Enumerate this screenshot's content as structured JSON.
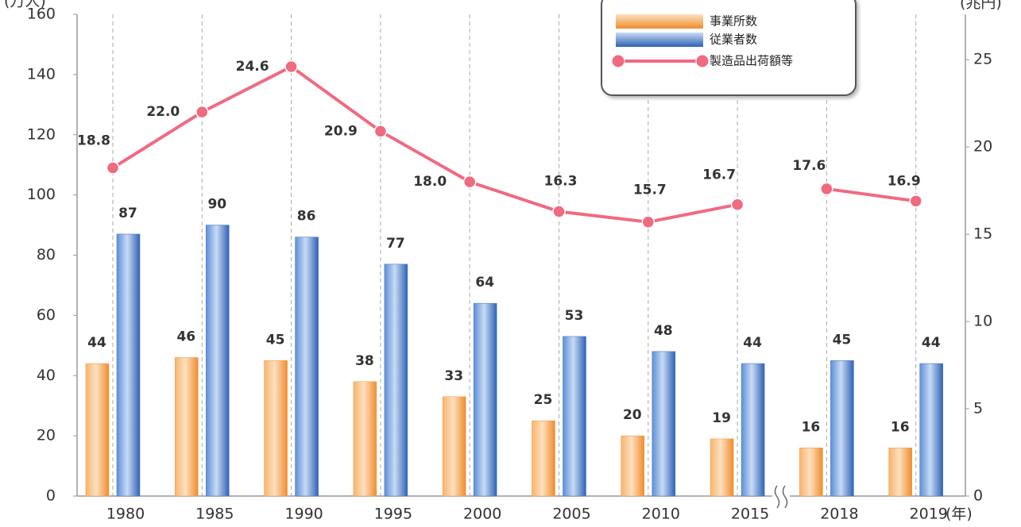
{
  "chart_data": {
    "type": "bar_line",
    "categories": [
      "1980",
      "1985",
      "1990",
      "1995",
      "2000",
      "2005",
      "2010",
      "2015",
      "2018",
      "2019"
    ],
    "x_break_index": 8,
    "y_label": "(万人)",
    "y2_label": "(兆円)",
    "x_label": "(年)",
    "series": [
      {
        "name": "事業所数",
        "type": "bar",
        "color": "#f5a04a",
        "values": [
          44,
          46,
          45,
          38,
          33,
          25,
          20,
          19,
          16,
          16
        ]
      },
      {
        "name": "従業者数",
        "type": "bar",
        "color": "#4a7cc8",
        "values": [
          87,
          90,
          86,
          77,
          64,
          53,
          48,
          44,
          45,
          44
        ]
      },
      {
        "name": "製造品出荷額等",
        "type": "line",
        "axis": "y2",
        "color": "#f06a80",
        "values": [
          18.8,
          22.0,
          24.6,
          20.9,
          18.0,
          16.3,
          15.7,
          16.7,
          17.6,
          16.9
        ],
        "value_labels": [
          "18.8",
          "22.0",
          "24.6",
          "20.9",
          "18.0",
          "16.3",
          "15.7",
          "16.7",
          "17.6",
          "16.9"
        ]
      }
    ],
    "ylim": [
      0,
      160
    ],
    "yticks": [
      0,
      20,
      40,
      60,
      80,
      100,
      120,
      140,
      160
    ],
    "y2lim": [
      0,
      27.6
    ],
    "y2ticks": [
      0,
      5,
      10,
      15,
      20,
      25
    ],
    "grid": "x-dashed",
    "legend": "top-right"
  }
}
